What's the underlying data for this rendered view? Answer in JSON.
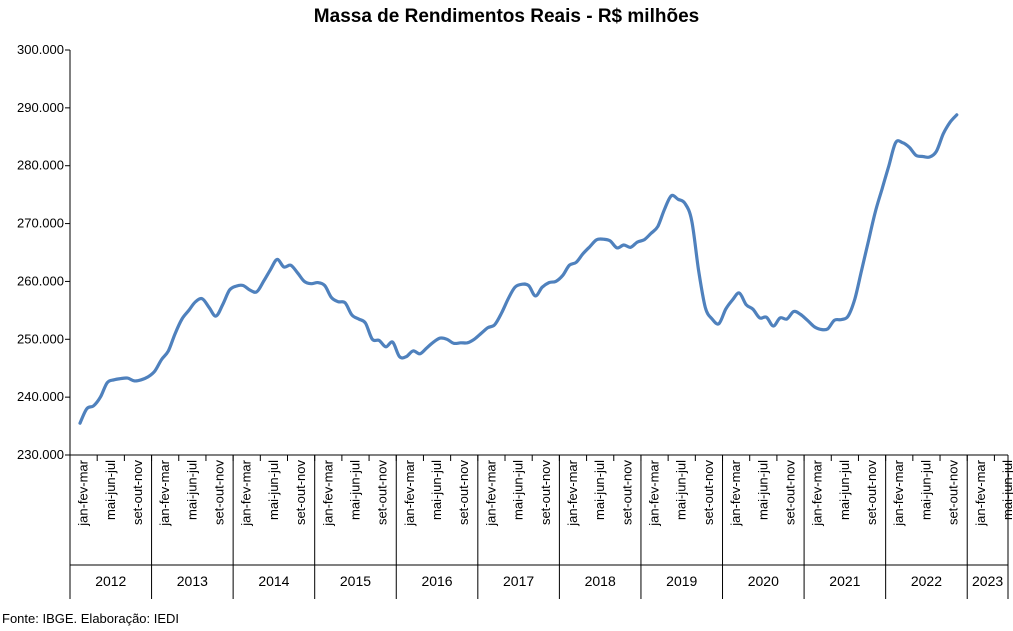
{
  "chart_data": {
    "type": "line",
    "title": "Massa de Rendimentos Reais - R$ milhões",
    "xlabel": "",
    "ylabel": "",
    "ylim": [
      230000,
      300000
    ],
    "yticks": [
      230000,
      240000,
      250000,
      260000,
      270000,
      280000,
      290000,
      300000
    ],
    "ytick_labels": [
      "230.000",
      "240.000",
      "250.000",
      "260.000",
      "270.000",
      "280.000",
      "290.000",
      "300.000"
    ],
    "grid": false,
    "legend": "none",
    "line_color": "#4F81BD",
    "period_labels": [
      "jan-fev-mar",
      "mai-jun-jul",
      "set-out-nov"
    ],
    "years": [
      "2012",
      "2013",
      "2014",
      "2015",
      "2016",
      "2017",
      "2018",
      "2019",
      "2020",
      "2021",
      "2022",
      "2023"
    ],
    "series": [
      {
        "values": [
          235500,
          238000,
          238500,
          240000,
          242500,
          243000,
          243200,
          243300,
          242800,
          243000,
          243500,
          244500,
          246500,
          248000,
          251000,
          253500,
          255000,
          256500,
          257000,
          255500,
          254000,
          256000,
          258500,
          259200,
          259300,
          258500,
          258200,
          260000,
          262000,
          263800,
          262500,
          262800,
          261500,
          260000,
          259600,
          259800,
          259300,
          257200,
          256500,
          256300,
          254200,
          253500,
          252800,
          250000,
          249800,
          248700,
          249500,
          247000,
          247000,
          248000,
          247500,
          248500,
          249500,
          250200,
          250000,
          249300,
          249400,
          249400,
          250000,
          251000,
          252000,
          252500,
          254500,
          257000,
          259000,
          259500,
          259300,
          257500,
          259000,
          259800,
          260000,
          261000,
          262800,
          263300,
          264800,
          266000,
          267200,
          267300,
          267000,
          265800,
          266300,
          265900,
          266800,
          267200,
          268300,
          269500,
          272500,
          274800,
          274200,
          273500,
          270500,
          262000,
          255500,
          253500,
          252700,
          255200,
          256800,
          258000,
          256000,
          255200,
          253700,
          253800,
          252300,
          253700,
          253500,
          254800,
          254300,
          253300,
          252200,
          251700,
          251800,
          253300,
          253400,
          254000,
          257000,
          262000,
          267000,
          272000,
          276000,
          280000,
          284000,
          284000,
          283200,
          281800,
          281600,
          281500,
          282500,
          285500,
          287500,
          288800
        ]
      }
    ],
    "source": "Fonte: IBGE. Elaboração: IEDI"
  }
}
